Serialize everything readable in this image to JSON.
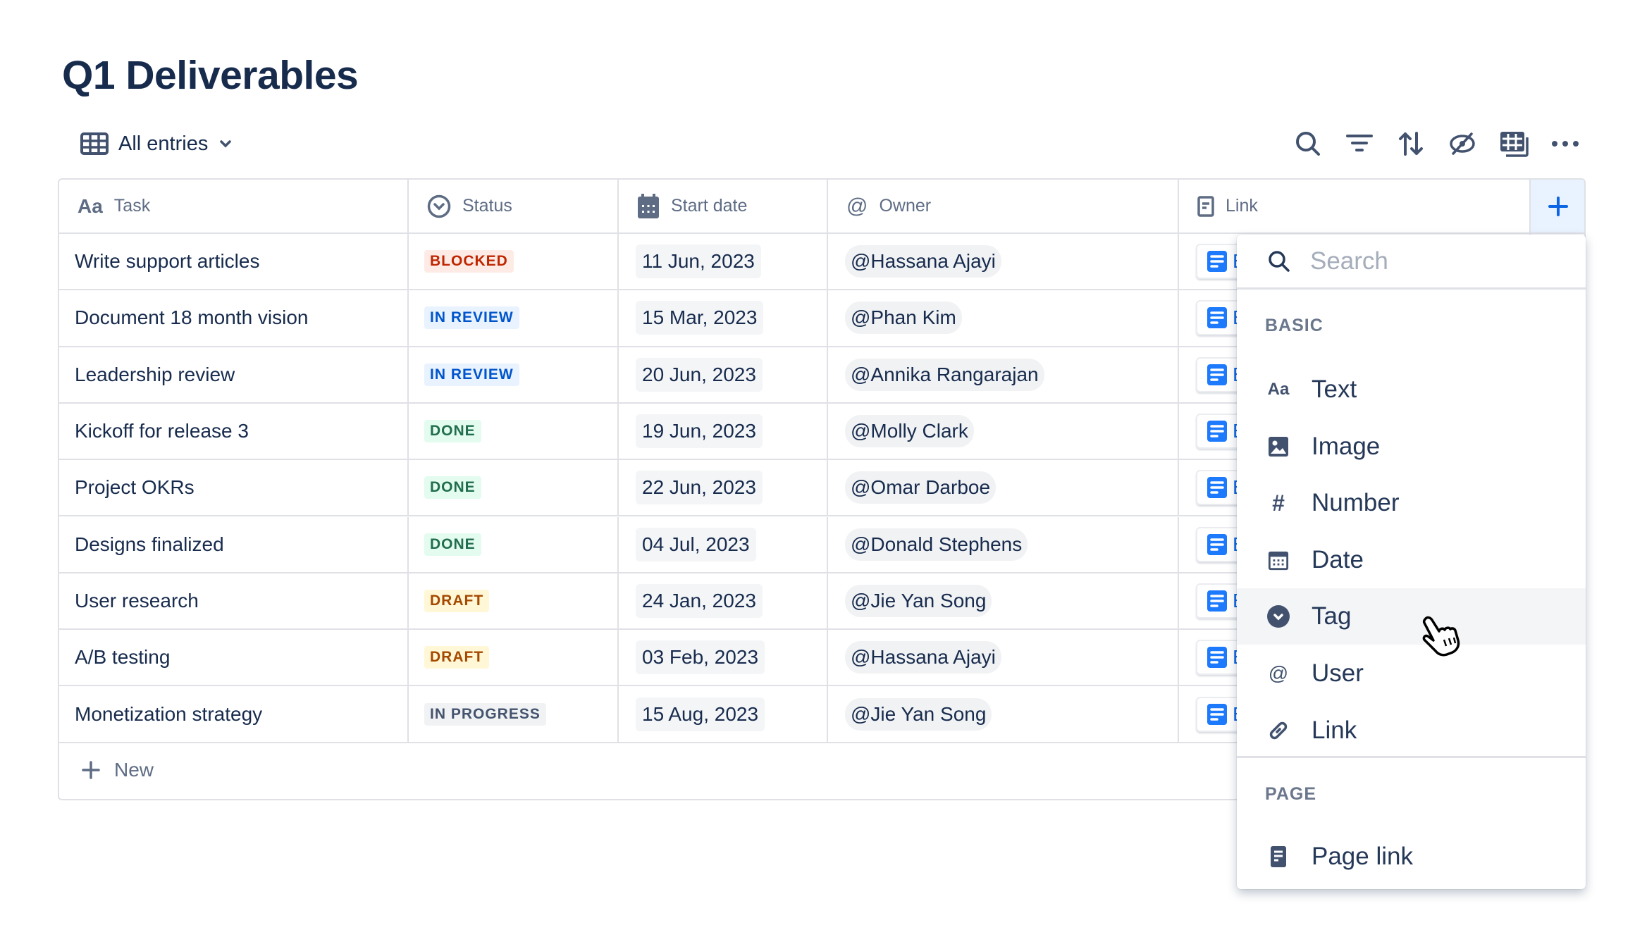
{
  "title": "Q1 Deliverables",
  "view": {
    "label": "All entries",
    "icon": "table-icon"
  },
  "toolbar": [
    "search-icon",
    "filter-icon",
    "sort-icon",
    "hide-icon",
    "table-layout-icon",
    "more-icon"
  ],
  "columns": [
    {
      "label": "Task",
      "icon": "text-icon"
    },
    {
      "label": "Status",
      "icon": "status-icon"
    },
    {
      "label": "Start date",
      "icon": "calendar-icon"
    },
    {
      "label": "Owner",
      "icon": "at-icon"
    },
    {
      "label": "Link",
      "icon": "page-icon"
    }
  ],
  "status_colors": {
    "BLOCKED": {
      "bg": "#ffebe6",
      "fg": "#bf2600"
    },
    "IN REVIEW": {
      "bg": "#e9f2ff",
      "fg": "#0055cc"
    },
    "DONE": {
      "bg": "#e3fcef",
      "fg": "#216e4e"
    },
    "DRAFT": {
      "bg": "#fff7d6",
      "fg": "#a54800"
    },
    "IN PROGRESS": {
      "bg": "#f1f2f4",
      "fg": "#44546f"
    }
  },
  "rows": [
    {
      "task": "Write support articles",
      "status": "BLOCKED",
      "date": "11 Jun, 2023",
      "owner": "@Hassana Ajayi",
      "link": "E"
    },
    {
      "task": "Document 18 month vision",
      "status": "IN REVIEW",
      "date": "15 Mar, 2023",
      "owner": "@Phan Kim",
      "link": "E"
    },
    {
      "task": "Leadership review",
      "status": "IN REVIEW",
      "date": "20 Jun, 2023",
      "owner": "@Annika Rangarajan",
      "link": "E"
    },
    {
      "task": "Kickoff for release 3",
      "status": "DONE",
      "date": "19 Jun, 2023",
      "owner": "@Molly Clark",
      "link": "E"
    },
    {
      "task": "Project OKRs",
      "status": "DONE",
      "date": "22 Jun, 2023",
      "owner": "@Omar Darboe",
      "link": "E"
    },
    {
      "task": "Designs finalized",
      "status": "DONE",
      "date": "04 Jul, 2023",
      "owner": "@Donald Stephens",
      "link": "E"
    },
    {
      "task": "User research",
      "status": "DRAFT",
      "date": "24 Jan, 2023",
      "owner": "@Jie Yan Song",
      "link": "E"
    },
    {
      "task": "A/B testing",
      "status": "DRAFT",
      "date": "03 Feb, 2023",
      "owner": "@Hassana Ajayi",
      "link": "E"
    },
    {
      "task": "Monetization strategy",
      "status": "IN PROGRESS",
      "date": "15 Aug, 2023",
      "owner": "@Jie Yan Song",
      "link": "E"
    }
  ],
  "new_label": "New",
  "menu": {
    "search_placeholder": "Search",
    "section_basic": "BASIC",
    "basic": [
      {
        "label": "Text",
        "icon": "text-icon"
      },
      {
        "label": "Image",
        "icon": "image-icon"
      },
      {
        "label": "Number",
        "icon": "hash-icon"
      },
      {
        "label": "Date",
        "icon": "calendar-icon"
      },
      {
        "label": "Tag",
        "icon": "tag-icon",
        "hovered": true
      },
      {
        "label": "User",
        "icon": "at-icon"
      },
      {
        "label": "Link",
        "icon": "link-icon"
      }
    ],
    "section_page": "PAGE",
    "page": [
      {
        "label": "Page link",
        "icon": "page-icon"
      }
    ]
  }
}
